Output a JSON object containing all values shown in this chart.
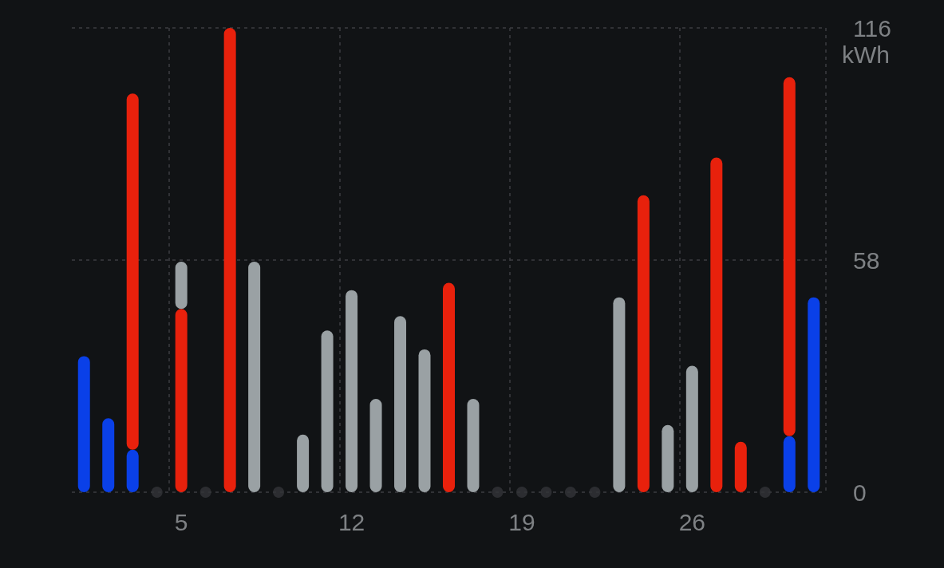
{
  "chart_data": {
    "type": "bar",
    "stacked": true,
    "ylabel": "kWh",
    "categories": [
      null,
      null,
      null,
      null,
      "5",
      null,
      null,
      null,
      null,
      null,
      null,
      "12",
      null,
      null,
      null,
      null,
      null,
      null,
      "19",
      null,
      null,
      null,
      null,
      null,
      null,
      "26",
      null,
      null,
      null,
      null,
      null
    ],
    "series": [
      {
        "color": "#0a40e8",
        "values": [
          34,
          18.5,
          10.6,
          0,
          0,
          0,
          0,
          0,
          0,
          0,
          0,
          0,
          0,
          0,
          0,
          0,
          0,
          0,
          0,
          0,
          0,
          0,
          0,
          0,
          0,
          0,
          0,
          0,
          0,
          14,
          48.7
        ]
      },
      {
        "color": "#e8210c",
        "values": [
          0,
          0,
          89,
          0,
          45.8,
          0,
          116,
          0,
          0,
          0,
          0,
          0,
          0,
          0,
          0,
          52.3,
          0,
          0,
          0,
          0,
          0,
          0,
          0,
          74.2,
          0,
          0,
          83.6,
          12.6,
          0,
          89.7,
          0
        ]
      },
      {
        "color": "#9aa1a4",
        "values": [
          0,
          0,
          0,
          0,
          11.8,
          0,
          0,
          57.6,
          0,
          14.4,
          40.4,
          50.5,
          23.3,
          44,
          35.7,
          0,
          23.3,
          0,
          0,
          0,
          0,
          0,
          48.7,
          0,
          16.8,
          31.6,
          0,
          0,
          0,
          0,
          0
        ]
      },
      {
        "type": "scatter",
        "color": "#333538",
        "values": [
          null,
          null,
          null,
          0,
          null,
          0,
          null,
          null,
          0,
          null,
          null,
          null,
          null,
          null,
          null,
          null,
          null,
          0,
          0,
          0,
          0,
          0,
          null,
          null,
          null,
          null,
          null,
          null,
          0,
          null,
          null
        ]
      }
    ],
    "ylim": [
      0,
      116
    ],
    "yticks": [
      0,
      58,
      116
    ],
    "grid": true
  }
}
